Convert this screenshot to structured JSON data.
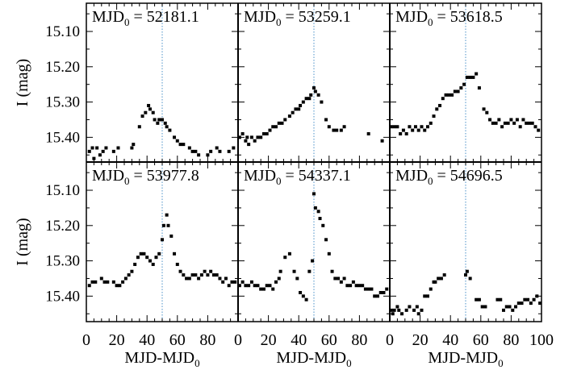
{
  "figure": {
    "ylabel": "I (mag)",
    "xlabel": "MJD-MJD",
    "xlabel_sub": "0"
  },
  "chart_data": {
    "type": "scatter",
    "xlim": [
      0,
      100
    ],
    "ylim": [
      15.47,
      15.02
    ],
    "y_inverted": true,
    "x_ticks": [
      0,
      20,
      40,
      60,
      80,
      100
    ],
    "y_ticks": [
      15.1,
      15.2,
      15.3,
      15.4
    ],
    "y_tick_labels": [
      "15.10",
      "15.20",
      "15.30",
      "15.40"
    ],
    "vline_x": 50,
    "vline_style": "dotted",
    "vline_color": "#4a90c8",
    "marker_color": "#000000",
    "panels": [
      {
        "label_main": "MJD",
        "label_sub": "0",
        "label_value": " = 52181.1",
        "points": [
          [
            2,
            15.44
          ],
          [
            4,
            15.43
          ],
          [
            5,
            15.46
          ],
          [
            7,
            15.43
          ],
          [
            9,
            15.45
          ],
          [
            11,
            15.44
          ],
          [
            13,
            15.43
          ],
          [
            18,
            15.44
          ],
          [
            21,
            15.43
          ],
          [
            30,
            15.43
          ],
          [
            31,
            15.42
          ],
          [
            35,
            15.37
          ],
          [
            37,
            15.34
          ],
          [
            39,
            15.33
          ],
          [
            41,
            15.31
          ],
          [
            42,
            15.32
          ],
          [
            44,
            15.33
          ],
          [
            45,
            15.35
          ],
          [
            47,
            15.36
          ],
          [
            48,
            15.35
          ],
          [
            50,
            15.35
          ],
          [
            52,
            15.36
          ],
          [
            53,
            15.37
          ],
          [
            55,
            15.38
          ],
          [
            58,
            15.4
          ],
          [
            60,
            15.41
          ],
          [
            62,
            15.42
          ],
          [
            64,
            15.42
          ],
          [
            68,
            15.43
          ],
          [
            70,
            15.44
          ],
          [
            72,
            15.44
          ],
          [
            74,
            15.45
          ],
          [
            80,
            15.45
          ],
          [
            82,
            15.44
          ],
          [
            86,
            15.43
          ],
          [
            88,
            15.44
          ],
          [
            94,
            15.44
          ],
          [
            97,
            15.43
          ]
        ]
      },
      {
        "label_main": "MJD",
        "label_sub": "0",
        "label_value": " = 53259.1",
        "points": [
          [
            1,
            15.4
          ],
          [
            3,
            15.39
          ],
          [
            5,
            15.41
          ],
          [
            6,
            15.4
          ],
          [
            7,
            15.42
          ],
          [
            9,
            15.4
          ],
          [
            11,
            15.41
          ],
          [
            13,
            15.4
          ],
          [
            15,
            15.4
          ],
          [
            17,
            15.39
          ],
          [
            19,
            15.39
          ],
          [
            21,
            15.38
          ],
          [
            23,
            15.37
          ],
          [
            25,
            15.37
          ],
          [
            27,
            15.36
          ],
          [
            29,
            15.36
          ],
          [
            31,
            15.35
          ],
          [
            34,
            15.34
          ],
          [
            36,
            15.33
          ],
          [
            38,
            15.32
          ],
          [
            40,
            15.32
          ],
          [
            41,
            15.31
          ],
          [
            43,
            15.3
          ],
          [
            45,
            15.29
          ],
          [
            47,
            15.29
          ],
          [
            48,
            15.28
          ],
          [
            50,
            15.26
          ],
          [
            51,
            15.27
          ],
          [
            53,
            15.28
          ],
          [
            55,
            15.3
          ],
          [
            58,
            15.35
          ],
          [
            60,
            15.37
          ],
          [
            63,
            15.38
          ],
          [
            65,
            15.38
          ],
          [
            68,
            15.38
          ],
          [
            70,
            15.37
          ],
          [
            86,
            15.39
          ],
          [
            95,
            15.41
          ]
        ]
      },
      {
        "label_main": "MJD",
        "label_sub": "0",
        "label_value": " = 53618.5",
        "points": [
          [
            1,
            15.37
          ],
          [
            3,
            15.37
          ],
          [
            5,
            15.37
          ],
          [
            7,
            15.39
          ],
          [
            9,
            15.38
          ],
          [
            11,
            15.39
          ],
          [
            13,
            15.37
          ],
          [
            15,
            15.38
          ],
          [
            17,
            15.37
          ],
          [
            19,
            15.38
          ],
          [
            21,
            15.37
          ],
          [
            23,
            15.38
          ],
          [
            25,
            15.37
          ],
          [
            27,
            15.36
          ],
          [
            29,
            15.34
          ],
          [
            31,
            15.32
          ],
          [
            33,
            15.31
          ],
          [
            35,
            15.29
          ],
          [
            37,
            15.28
          ],
          [
            39,
            15.28
          ],
          [
            41,
            15.28
          ],
          [
            43,
            15.27
          ],
          [
            45,
            15.27
          ],
          [
            47,
            15.26
          ],
          [
            49,
            15.25
          ],
          [
            51,
            15.23
          ],
          [
            53,
            15.23
          ],
          [
            55,
            15.23
          ],
          [
            57,
            15.22
          ],
          [
            59,
            15.26
          ],
          [
            62,
            15.32
          ],
          [
            64,
            15.33
          ],
          [
            66,
            15.35
          ],
          [
            68,
            15.36
          ],
          [
            70,
            15.36
          ],
          [
            72,
            15.35
          ],
          [
            74,
            15.37
          ],
          [
            76,
            15.36
          ],
          [
            78,
            15.36
          ],
          [
            80,
            15.35
          ],
          [
            82,
            15.36
          ],
          [
            84,
            15.35
          ],
          [
            86,
            15.37
          ],
          [
            88,
            15.35
          ],
          [
            90,
            15.36
          ],
          [
            92,
            15.36
          ],
          [
            94,
            15.36
          ],
          [
            96,
            15.37
          ],
          [
            98,
            15.38
          ]
        ]
      },
      {
        "label_main": "MJD",
        "label_sub": "0",
        "label_value": " = 53977.8",
        "points": [
          [
            2,
            15.37
          ],
          [
            4,
            15.36
          ],
          [
            6,
            15.36
          ],
          [
            10,
            15.35
          ],
          [
            12,
            15.36
          ],
          [
            14,
            15.36
          ],
          [
            18,
            15.36
          ],
          [
            20,
            15.37
          ],
          [
            22,
            15.37
          ],
          [
            24,
            15.36
          ],
          [
            26,
            15.35
          ],
          [
            28,
            15.34
          ],
          [
            30,
            15.33
          ],
          [
            32,
            15.31
          ],
          [
            34,
            15.29
          ],
          [
            36,
            15.28
          ],
          [
            38,
            15.28
          ],
          [
            40,
            15.29
          ],
          [
            42,
            15.3
          ],
          [
            44,
            15.31
          ],
          [
            46,
            15.29
          ],
          [
            48,
            15.28
          ],
          [
            50,
            15.24
          ],
          [
            51,
            15.2
          ],
          [
            53,
            15.17
          ],
          [
            54,
            15.2
          ],
          [
            56,
            15.23
          ],
          [
            58,
            15.28
          ],
          [
            60,
            15.31
          ],
          [
            62,
            15.33
          ],
          [
            64,
            15.34
          ],
          [
            66,
            15.35
          ],
          [
            68,
            15.35
          ],
          [
            70,
            15.34
          ],
          [
            72,
            15.34
          ],
          [
            74,
            15.35
          ],
          [
            76,
            15.34
          ],
          [
            78,
            15.33
          ],
          [
            80,
            15.34
          ],
          [
            82,
            15.33
          ],
          [
            84,
            15.34
          ],
          [
            86,
            15.34
          ],
          [
            88,
            15.35
          ],
          [
            90,
            15.36
          ],
          [
            92,
            15.35
          ],
          [
            94,
            15.37
          ],
          [
            96,
            15.36
          ],
          [
            98,
            15.36
          ]
        ]
      },
      {
        "label_main": "MJD",
        "label_sub": "0",
        "label_value": " = 54337.1",
        "points": [
          [
            1,
            15.37
          ],
          [
            3,
            15.36
          ],
          [
            5,
            15.37
          ],
          [
            7,
            15.37
          ],
          [
            9,
            15.36
          ],
          [
            11,
            15.37
          ],
          [
            13,
            15.37
          ],
          [
            15,
            15.38
          ],
          [
            17,
            15.38
          ],
          [
            19,
            15.37
          ],
          [
            21,
            15.37
          ],
          [
            23,
            15.38
          ],
          [
            25,
            15.36
          ],
          [
            27,
            15.35
          ],
          [
            28,
            15.33
          ],
          [
            31,
            15.29
          ],
          [
            34,
            15.28
          ],
          [
            37,
            15.33
          ],
          [
            39,
            15.35
          ],
          [
            41,
            15.39
          ],
          [
            43,
            15.4
          ],
          [
            45,
            15.41
          ],
          [
            47,
            15.33
          ],
          [
            49,
            15.3
          ],
          [
            50,
            15.11
          ],
          [
            51,
            15.15
          ],
          [
            53,
            15.16
          ],
          [
            54,
            15.18
          ],
          [
            56,
            15.2
          ],
          [
            58,
            15.24
          ],
          [
            60,
            15.28
          ],
          [
            62,
            15.33
          ],
          [
            64,
            15.35
          ],
          [
            66,
            15.35
          ],
          [
            68,
            15.36
          ],
          [
            70,
            15.35
          ],
          [
            72,
            15.37
          ],
          [
            74,
            15.37
          ],
          [
            76,
            15.36
          ],
          [
            78,
            15.37
          ],
          [
            80,
            15.37
          ],
          [
            82,
            15.37
          ],
          [
            84,
            15.38
          ],
          [
            86,
            15.38
          ],
          [
            88,
            15.38
          ],
          [
            90,
            15.4
          ],
          [
            92,
            15.4
          ],
          [
            94,
            15.39
          ],
          [
            96,
            15.39
          ],
          [
            98,
            15.38
          ]
        ]
      },
      {
        "label_main": "MJD",
        "label_sub": "0",
        "label_value": " = 54696.5",
        "points": [
          [
            1,
            15.44
          ],
          [
            2,
            15.45
          ],
          [
            3,
            15.44
          ],
          [
            5,
            15.43
          ],
          [
            6,
            15.44
          ],
          [
            8,
            15.45
          ],
          [
            11,
            15.44
          ],
          [
            13,
            15.43
          ],
          [
            16,
            15.44
          ],
          [
            18,
            15.43
          ],
          [
            19,
            15.45
          ],
          [
            21,
            15.44
          ],
          [
            23,
            15.4
          ],
          [
            25,
            15.4
          ],
          [
            27,
            15.38
          ],
          [
            29,
            15.36
          ],
          [
            30,
            15.36
          ],
          [
            32,
            15.35
          ],
          [
            34,
            15.35
          ],
          [
            36,
            15.34
          ],
          [
            50,
            15.34
          ],
          [
            51,
            15.33
          ],
          [
            53,
            15.35
          ],
          [
            57,
            15.41
          ],
          [
            59,
            15.41
          ],
          [
            61,
            15.43
          ],
          [
            63,
            15.43
          ],
          [
            71,
            15.41
          ],
          [
            73,
            15.41
          ],
          [
            75,
            15.44
          ],
          [
            77,
            15.43
          ],
          [
            79,
            15.43
          ],
          [
            81,
            15.44
          ],
          [
            83,
            15.43
          ],
          [
            85,
            15.42
          ],
          [
            87,
            15.42
          ],
          [
            89,
            15.41
          ],
          [
            91,
            15.41
          ],
          [
            93,
            15.42
          ],
          [
            95,
            15.41
          ],
          [
            97,
            15.4
          ],
          [
            99,
            15.42
          ]
        ]
      }
    ]
  }
}
